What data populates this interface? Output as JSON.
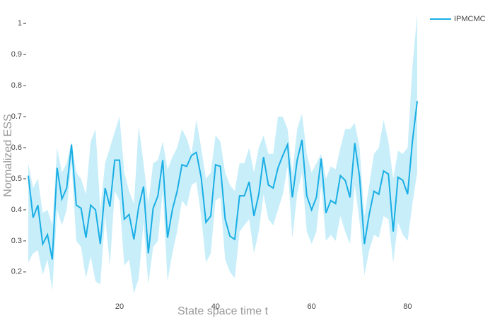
{
  "chart_data": {
    "type": "line",
    "xlabel": "State space time t",
    "ylabel": "Normalized ESS",
    "x": [
      1,
      2,
      3,
      4,
      5,
      6,
      7,
      8,
      9,
      10,
      11,
      12,
      13,
      14,
      15,
      16,
      17,
      18,
      19,
      20,
      21,
      22,
      23,
      24,
      25,
      26,
      27,
      28,
      29,
      30,
      31,
      32,
      33,
      34,
      35,
      36,
      37,
      38,
      39,
      40,
      41,
      42,
      43,
      44,
      45,
      46,
      47,
      48,
      49,
      50,
      51,
      52,
      53,
      54,
      55,
      56,
      57,
      58,
      59,
      60,
      61,
      62,
      63,
      64,
      65,
      66,
      67,
      68,
      69,
      70,
      71,
      72,
      73,
      74,
      75,
      76,
      77,
      78,
      79,
      80,
      81,
      82
    ],
    "series": [
      {
        "name": "IPMCMC",
        "color": "#1aaee5",
        "values": [
          0.51,
          0.375,
          0.415,
          0.29,
          0.32,
          0.24,
          0.535,
          0.435,
          0.47,
          0.61,
          0.415,
          0.405,
          0.31,
          0.415,
          0.4,
          0.29,
          0.47,
          0.41,
          0.56,
          0.56,
          0.37,
          0.385,
          0.305,
          0.41,
          0.475,
          0.26,
          0.405,
          0.445,
          0.56,
          0.31,
          0.4,
          0.46,
          0.545,
          0.54,
          0.575,
          0.585,
          0.505,
          0.36,
          0.38,
          0.545,
          0.54,
          0.37,
          0.315,
          0.305,
          0.445,
          0.445,
          0.49,
          0.38,
          0.45,
          0.57,
          0.48,
          0.47,
          0.535,
          0.575,
          0.61,
          0.44,
          0.56,
          0.625,
          0.445,
          0.4,
          0.44,
          0.565,
          0.39,
          0.43,
          0.42,
          0.51,
          0.495,
          0.44,
          0.615,
          0.505,
          0.29,
          0.385,
          0.46,
          0.45,
          0.525,
          0.515,
          0.33,
          0.505,
          0.495,
          0.45,
          0.62,
          0.75
        ]
      }
    ],
    "band": {
      "color": "#c8eefa",
      "upper": [
        0.55,
        0.47,
        0.5,
        0.39,
        0.4,
        0.35,
        0.6,
        0.52,
        0.55,
        0.62,
        0.52,
        0.5,
        0.45,
        0.62,
        0.66,
        0.4,
        0.55,
        0.6,
        0.65,
        0.7,
        0.52,
        0.46,
        0.42,
        0.67,
        0.55,
        0.42,
        0.55,
        0.56,
        0.62,
        0.53,
        0.57,
        0.6,
        0.66,
        0.63,
        0.58,
        0.69,
        0.6,
        0.5,
        0.52,
        0.64,
        0.62,
        0.52,
        0.48,
        0.46,
        0.55,
        0.55,
        0.6,
        0.52,
        0.6,
        0.64,
        0.58,
        0.58,
        0.7,
        0.7,
        0.66,
        0.52,
        0.66,
        0.71,
        0.58,
        0.52,
        0.55,
        0.58,
        0.5,
        0.54,
        0.53,
        0.6,
        0.66,
        0.66,
        0.68,
        0.6,
        0.38,
        0.48,
        0.58,
        0.6,
        0.69,
        0.62,
        0.5,
        0.59,
        0.58,
        0.6,
        0.86,
        1.03
      ],
      "lower": [
        0.23,
        0.26,
        0.27,
        0.19,
        0.24,
        0.14,
        0.4,
        0.35,
        0.4,
        0.55,
        0.3,
        0.28,
        0.18,
        0.25,
        0.17,
        0.16,
        0.38,
        0.22,
        0.46,
        0.43,
        0.22,
        0.24,
        0.13,
        0.18,
        0.36,
        0.16,
        0.28,
        0.3,
        0.46,
        0.17,
        0.26,
        0.33,
        0.43,
        0.41,
        0.48,
        0.49,
        0.38,
        0.23,
        0.26,
        0.43,
        0.44,
        0.24,
        0.2,
        0.18,
        0.33,
        0.35,
        0.37,
        0.26,
        0.33,
        0.45,
        0.37,
        0.35,
        0.4,
        0.45,
        0.54,
        0.31,
        0.45,
        0.52,
        0.33,
        0.29,
        0.33,
        0.48,
        0.3,
        0.32,
        0.3,
        0.38,
        0.33,
        0.29,
        0.48,
        0.36,
        0.19,
        0.27,
        0.32,
        0.31,
        0.38,
        0.37,
        0.23,
        0.36,
        0.32,
        0.3,
        0.42,
        0.52
      ]
    },
    "xlim": [
      1,
      82
    ],
    "ylim": [
      0.12,
      1.03
    ],
    "xticks": [
      20,
      40,
      60,
      80
    ],
    "yticks": [
      0.2,
      0.3,
      0.4,
      0.5,
      0.6,
      0.7,
      0.8,
      0.9,
      1
    ],
    "legend": "top-right"
  }
}
